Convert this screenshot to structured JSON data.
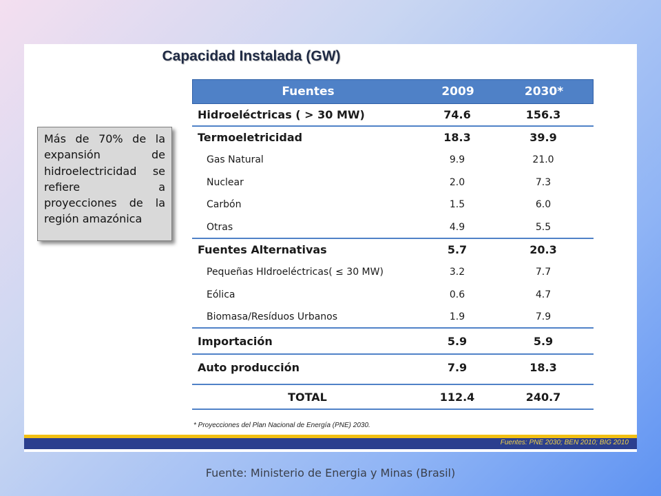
{
  "title": "Capacidad Instalada (GW)",
  "callout": "Más de 70% de la expansión de hidroelectricidad se refiere a proyecciones de la región amazónica",
  "table": {
    "headers": [
      "Fuentes",
      "2009",
      "2030*"
    ],
    "rows": [
      {
        "label": "Hidroeléctricas ( > 30 MW)",
        "v2009": "74.6",
        "v2030": "156.3"
      },
      {
        "label": "Termoeletricidad",
        "v2009": "18.3",
        "v2030": "39.9"
      },
      {
        "label": "Gas Natural",
        "v2009": "9.9",
        "v2030": "21.0"
      },
      {
        "label": "Nuclear",
        "v2009": "2.0",
        "v2030": "7.3"
      },
      {
        "label": "Carbón",
        "v2009": "1.5",
        "v2030": "6.0"
      },
      {
        "label": "Otras",
        "v2009": "4.9",
        "v2030": "5.5"
      },
      {
        "label": "Fuentes Alternativas",
        "v2009": "5.7",
        "v2030": "20.3"
      },
      {
        "label": "Pequeñas HIdroeléctricas( ≤ 30 MW)",
        "v2009": "3.2",
        "v2030": "7.7"
      },
      {
        "label": "Eólica",
        "v2009": "0.6",
        "v2030": "4.7"
      },
      {
        "label": "Biomasa/Resíduos Urbanos",
        "v2009": "1.9",
        "v2030": "7.9"
      },
      {
        "label": "Importación",
        "v2009": "5.9",
        "v2030": "5.9"
      },
      {
        "label": "Auto producción",
        "v2009": "7.9",
        "v2030": "18.3"
      }
    ],
    "total": {
      "label": "TOTAL",
      "v2009": "112.4",
      "v2030": "240.7"
    }
  },
  "footnote": "* Proyecciones del  Plan Nacional de Energía (PNE) 2030.",
  "sources_bar": "Fuentes: PNE 2030; BEN 2010; BIG 2010",
  "caption": "Fuente: Ministerio de Energia y Minas (Brasil)"
}
